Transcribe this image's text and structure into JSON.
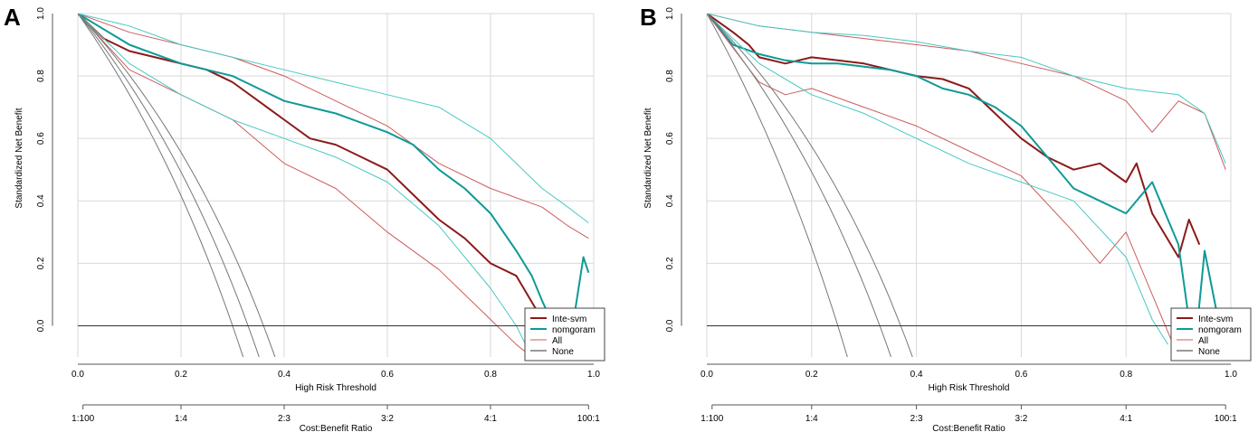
{
  "colors": {
    "inte_svm": "#8b1a1a",
    "inte_svm_ci": "#cd5c5c",
    "nomogram": "#0e9a96",
    "nomogram_ci": "#48c9c3",
    "all": "#777777",
    "none": "#333333",
    "grid": "#d9d9d9"
  },
  "chart_data": [
    {
      "type": "line",
      "panel_label": "A",
      "xlabel": "High Risk Threshold",
      "ylabel": "Standardized Net Benefit",
      "xlim": [
        0,
        1
      ],
      "ylim": [
        -0.1,
        1.0
      ],
      "x_ticks": [
        "0.0",
        "0.2",
        "0.4",
        "0.6",
        "0.8",
        "1.0"
      ],
      "y_ticks": [
        "0.0",
        "0.2",
        "0.4",
        "0.6",
        "0.8",
        "1.0"
      ],
      "cost_axis_label": "Cost:Benefit Ratio",
      "cost_ticks": [
        "1:100",
        "1:4",
        "2:3",
        "3:2",
        "4:1",
        "100:1"
      ],
      "legend": [
        "Inte-svm",
        "nomgoram",
        "All",
        "None"
      ],
      "series": [
        {
          "name": "Inte-svm",
          "role": "main",
          "x": [
            0,
            0.05,
            0.1,
            0.15,
            0.2,
            0.25,
            0.3,
            0.35,
            0.4,
            0.45,
            0.5,
            0.55,
            0.6,
            0.65,
            0.7,
            0.75,
            0.8,
            0.85,
            0.9
          ],
          "y": [
            1.0,
            0.92,
            0.88,
            0.86,
            0.84,
            0.82,
            0.78,
            0.72,
            0.66,
            0.6,
            0.58,
            0.54,
            0.5,
            0.42,
            0.34,
            0.28,
            0.2,
            0.16,
            0.02
          ]
        },
        {
          "name": "Inte-svm upper CI",
          "role": "ci",
          "x": [
            0,
            0.1,
            0.2,
            0.3,
            0.4,
            0.5,
            0.6,
            0.7,
            0.8,
            0.9,
            0.95,
            0.99
          ],
          "y": [
            1.0,
            0.94,
            0.9,
            0.86,
            0.8,
            0.72,
            0.64,
            0.52,
            0.44,
            0.38,
            0.32,
            0.28
          ]
        },
        {
          "name": "Inte-svm lower CI",
          "role": "ci",
          "x": [
            0,
            0.1,
            0.2,
            0.3,
            0.4,
            0.5,
            0.6,
            0.7,
            0.8,
            0.85,
            0.88
          ],
          "y": [
            1.0,
            0.82,
            0.74,
            0.66,
            0.52,
            0.44,
            0.3,
            0.18,
            0.02,
            -0.06,
            -0.1
          ]
        },
        {
          "name": "nomgoram",
          "role": "main",
          "x": [
            0,
            0.05,
            0.1,
            0.15,
            0.2,
            0.25,
            0.3,
            0.35,
            0.4,
            0.45,
            0.5,
            0.55,
            0.6,
            0.65,
            0.7,
            0.75,
            0.8,
            0.85,
            0.88,
            0.9,
            0.95,
            0.98,
            0.99
          ],
          "y": [
            1.0,
            0.95,
            0.9,
            0.87,
            0.84,
            0.82,
            0.8,
            0.76,
            0.72,
            0.7,
            0.68,
            0.65,
            0.62,
            0.58,
            0.5,
            0.44,
            0.36,
            0.24,
            0.16,
            0.08,
            -0.1,
            0.22,
            0.17
          ]
        },
        {
          "name": "nomgoram upper CI",
          "role": "ci",
          "x": [
            0,
            0.1,
            0.2,
            0.3,
            0.4,
            0.5,
            0.6,
            0.7,
            0.8,
            0.9,
            0.95,
            0.99
          ],
          "y": [
            1.0,
            0.96,
            0.9,
            0.86,
            0.82,
            0.78,
            0.74,
            0.7,
            0.6,
            0.44,
            0.38,
            0.33
          ]
        },
        {
          "name": "nomgoram lower CI",
          "role": "ci",
          "x": [
            0,
            0.1,
            0.2,
            0.3,
            0.4,
            0.5,
            0.6,
            0.7,
            0.8,
            0.85,
            0.88
          ],
          "y": [
            1.0,
            0.84,
            0.74,
            0.66,
            0.6,
            0.54,
            0.46,
            0.32,
            0.12,
            0.0,
            -0.1
          ]
        },
        {
          "name": "All",
          "role": "all",
          "prevalence": 0.3
        },
        {
          "name": "All upper",
          "role": "all",
          "prevalence": 0.33
        },
        {
          "name": "All lower",
          "role": "all",
          "prevalence": 0.36
        },
        {
          "name": "None",
          "role": "none",
          "x": [
            0,
            1
          ],
          "y": [
            0,
            0
          ]
        }
      ]
    },
    {
      "type": "line",
      "panel_label": "B",
      "xlabel": "High Risk Threshold",
      "ylabel": "Standardized Net Benefit",
      "xlim": [
        0,
        1
      ],
      "ylim": [
        -0.1,
        1.0
      ],
      "x_ticks": [
        "0.0",
        "0.2",
        "0.4",
        "0.6",
        "0.8",
        "1.0"
      ],
      "y_ticks": [
        "0.0",
        "0.2",
        "0.4",
        "0.6",
        "0.8",
        "1.0"
      ],
      "cost_axis_label": "Cost:Benefit Ratio",
      "cost_ticks": [
        "1:100",
        "1:4",
        "2:3",
        "3:2",
        "4:1",
        "100:1"
      ],
      "legend": [
        "Inte-svm",
        "nomgoram",
        "All",
        "None"
      ],
      "series": [
        {
          "name": "Inte-svm",
          "role": "main",
          "x": [
            0,
            0.05,
            0.08,
            0.1,
            0.15,
            0.2,
            0.25,
            0.3,
            0.35,
            0.4,
            0.45,
            0.5,
            0.55,
            0.6,
            0.65,
            0.7,
            0.75,
            0.8,
            0.82,
            0.85,
            0.9,
            0.92,
            0.94
          ],
          "y": [
            1.0,
            0.94,
            0.9,
            0.86,
            0.84,
            0.86,
            0.85,
            0.84,
            0.82,
            0.8,
            0.79,
            0.76,
            0.68,
            0.6,
            0.54,
            0.5,
            0.52,
            0.46,
            0.52,
            0.36,
            0.22,
            0.34,
            0.26
          ]
        },
        {
          "name": "Inte-svm upper CI",
          "role": "ci",
          "x": [
            0,
            0.1,
            0.2,
            0.3,
            0.4,
            0.5,
            0.6,
            0.7,
            0.8,
            0.85,
            0.9,
            0.95,
            0.99
          ],
          "y": [
            1.0,
            0.96,
            0.94,
            0.92,
            0.9,
            0.88,
            0.84,
            0.8,
            0.72,
            0.62,
            0.72,
            0.68,
            0.5
          ]
        },
        {
          "name": "Inte-svm lower CI",
          "role": "ci",
          "x": [
            0,
            0.1,
            0.15,
            0.2,
            0.3,
            0.4,
            0.5,
            0.6,
            0.7,
            0.75,
            0.8,
            0.85,
            0.9
          ],
          "y": [
            1.0,
            0.78,
            0.74,
            0.76,
            0.7,
            0.64,
            0.56,
            0.48,
            0.3,
            0.2,
            0.3,
            0.1,
            -0.1
          ]
        },
        {
          "name": "nomgoram",
          "role": "main",
          "x": [
            0,
            0.05,
            0.1,
            0.15,
            0.2,
            0.25,
            0.3,
            0.35,
            0.4,
            0.45,
            0.5,
            0.55,
            0.6,
            0.65,
            0.7,
            0.75,
            0.8,
            0.85,
            0.88,
            0.9,
            0.93,
            0.95,
            0.99
          ],
          "y": [
            1.0,
            0.9,
            0.87,
            0.85,
            0.84,
            0.84,
            0.83,
            0.82,
            0.8,
            0.76,
            0.74,
            0.7,
            0.64,
            0.54,
            0.44,
            0.4,
            0.36,
            0.46,
            0.34,
            0.26,
            -0.1,
            0.24,
            -0.1
          ]
        },
        {
          "name": "nomgoram upper CI",
          "role": "ci",
          "x": [
            0,
            0.1,
            0.2,
            0.3,
            0.4,
            0.5,
            0.6,
            0.7,
            0.8,
            0.9,
            0.95,
            0.99
          ],
          "y": [
            1.0,
            0.96,
            0.94,
            0.93,
            0.91,
            0.88,
            0.86,
            0.8,
            0.76,
            0.74,
            0.68,
            0.52
          ]
        },
        {
          "name": "nomgoram lower CI",
          "role": "ci",
          "x": [
            0,
            0.1,
            0.2,
            0.3,
            0.4,
            0.5,
            0.6,
            0.7,
            0.8,
            0.85,
            0.88
          ],
          "y": [
            1.0,
            0.84,
            0.74,
            0.68,
            0.6,
            0.52,
            0.46,
            0.4,
            0.22,
            0.02,
            -0.06
          ]
        },
        {
          "name": "All",
          "role": "all",
          "prevalence": 0.25
        },
        {
          "name": "All upper",
          "role": "all",
          "prevalence": 0.33
        },
        {
          "name": "All lower",
          "role": "all",
          "prevalence": 0.37
        },
        {
          "name": "None",
          "role": "none",
          "x": [
            0,
            1
          ],
          "y": [
            0,
            0
          ]
        }
      ]
    }
  ]
}
